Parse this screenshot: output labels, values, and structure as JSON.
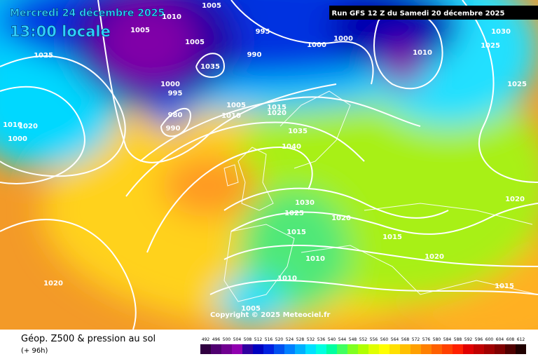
{
  "header": {
    "date": "Mercredi 24 décembre 2025",
    "time": "13:00 locale",
    "run": "Run GFS 12 Z du Samedi 20 décembre 2025"
  },
  "isobar_labels": [
    1010,
    1005,
    1005,
    995,
    1025,
    1005,
    1010,
    1030,
    1025,
    1025,
    1000,
    1000,
    990,
    1035,
    1000,
    995,
    980,
    990,
    1005,
    1010,
    1015,
    1020,
    1035,
    1040,
    1020,
    1000,
    1010,
    1030,
    1025,
    1020,
    1015,
    1015,
    1010,
    1020,
    1020,
    1010,
    1015,
    1020,
    1005
  ],
  "footer": {
    "title": "Géop. Z500 & pression au sol",
    "lead": "(+ 96h)",
    "copyright": "Copyright © 2025 Meteociel.fr"
  },
  "legend": {
    "values": [
      492,
      496,
      500,
      504,
      508,
      512,
      516,
      520,
      524,
      528,
      532,
      536,
      540,
      544,
      548,
      552,
      556,
      560,
      564,
      568,
      572,
      576,
      580,
      584,
      588,
      592,
      596,
      600,
      604,
      608,
      612
    ],
    "colors": [
      "#300040",
      "#500070",
      "#700090",
      "#9000b0",
      "#3000a0",
      "#0000c0",
      "#0020e0",
      "#0050f0",
      "#0080ff",
      "#00b0ff",
      "#00e0ff",
      "#00ffe0",
      "#00ffa0",
      "#40ff60",
      "#80ff20",
      "#b0ff00",
      "#e0ff00",
      "#ffff00",
      "#ffe000",
      "#ffc000",
      "#ffa000",
      "#ff8000",
      "#ff6000",
      "#ff4000",
      "#ff2000",
      "#e00000",
      "#c00000",
      "#a00000",
      "#800000",
      "#500000",
      "#200000"
    ]
  }
}
